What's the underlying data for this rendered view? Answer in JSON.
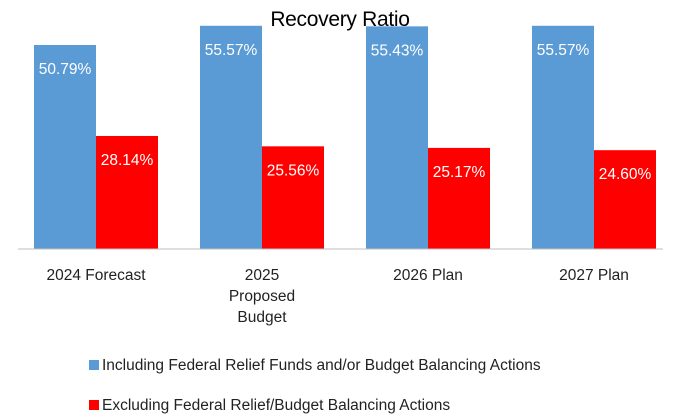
{
  "chart_data": {
    "type": "bar",
    "title": "Recovery Ratio",
    "categories": [
      "2024 Forecast",
      "2025 Proposed Budget",
      "2026 Plan",
      "2027 Plan"
    ],
    "category_lines": [
      [
        "2024 Forecast"
      ],
      [
        "2025",
        "Proposed",
        "Budget"
      ],
      [
        "2026 Plan"
      ],
      [
        "2027 Plan"
      ]
    ],
    "series": [
      {
        "name": "Including Federal Relief Funds and/or Budget Balancing Actions",
        "values": [
          50.79,
          55.57,
          55.43,
          55.57
        ],
        "labels": [
          "50.79%",
          "55.57%",
          "55.43%",
          "55.57%"
        ],
        "color": "#5b9bd5"
      },
      {
        "name": "Excluding Federal Relief/Budget Balancing Actions",
        "values": [
          28.14,
          25.56,
          25.17,
          24.6
        ],
        "labels": [
          "28.14%",
          "25.56%",
          "25.17%",
          "24.60%"
        ],
        "color": "#ff0000"
      }
    ],
    "ylim": [
      0,
      60
    ],
    "grid": false,
    "legend_position": "bottom",
    "xlabel": "",
    "ylabel": ""
  }
}
